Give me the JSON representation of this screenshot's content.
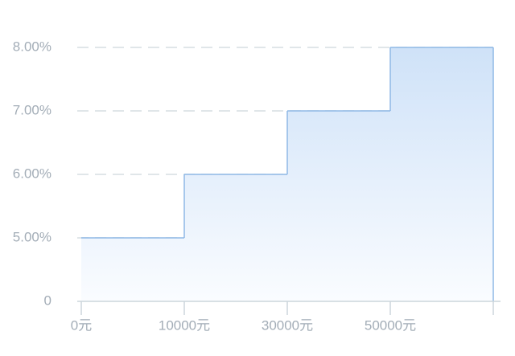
{
  "chart_data": {
    "type": "step",
    "categories": [
      "0元",
      "10000元",
      "30000元",
      "50000元",
      null
    ],
    "series": [
      {
        "color": "#8fb9e6",
        "values": [
          5,
          6,
          7,
          8,
          null
        ]
      }
    ],
    "ylim": [
      0,
      8
    ],
    "yticks": [
      0,
      {
        "value": 5,
        "label": "5.00%"
      },
      {
        "value": 6,
        "label": "6.00%"
      },
      {
        "value": 7,
        "label": "7.00%"
      },
      {
        "value": 8,
        "label": "8.00%"
      }
    ],
    "grid": true
  }
}
